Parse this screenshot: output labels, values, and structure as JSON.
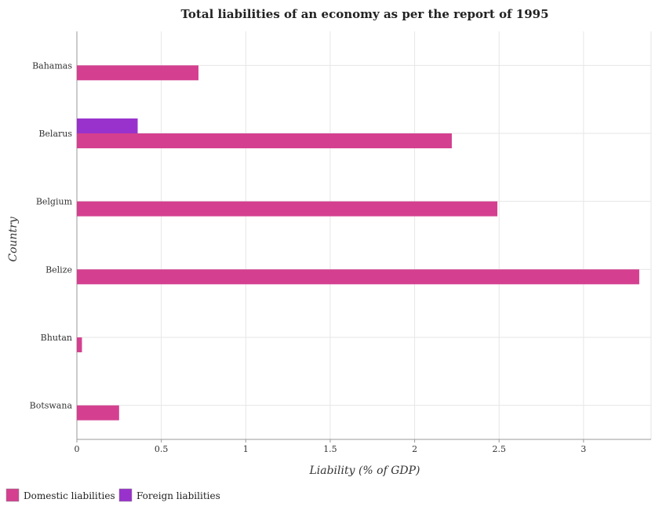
{
  "chart_data": {
    "type": "bar",
    "orientation": "horizontal",
    "title": "Total liabilities of an economy as per the report of 1995",
    "xlabel": "Liability (% of GDP)",
    "ylabel": "Country",
    "categories": [
      "Bahamas",
      "Belarus",
      "Belgium",
      "Belize",
      "Bhutan",
      "Botswana"
    ],
    "series": [
      {
        "name": "Domestic liabilities",
        "color": "#d4408f",
        "values": [
          0.72,
          2.22,
          2.49,
          3.33,
          0.03,
          0.25
        ]
      },
      {
        "name": "Foreign liabilities",
        "color": "#9932cc",
        "values": [
          0,
          0.36,
          0,
          0,
          0,
          0
        ]
      }
    ],
    "xlim": [
      0,
      3.4
    ],
    "xticks": [
      "0",
      "0.5",
      "1",
      "1.5",
      "2",
      "2.5",
      "3"
    ],
    "xtick_values": [
      0,
      0.5,
      1,
      1.5,
      2,
      2.5,
      3
    ],
    "grid": true,
    "legend_position": "bottom-left"
  }
}
